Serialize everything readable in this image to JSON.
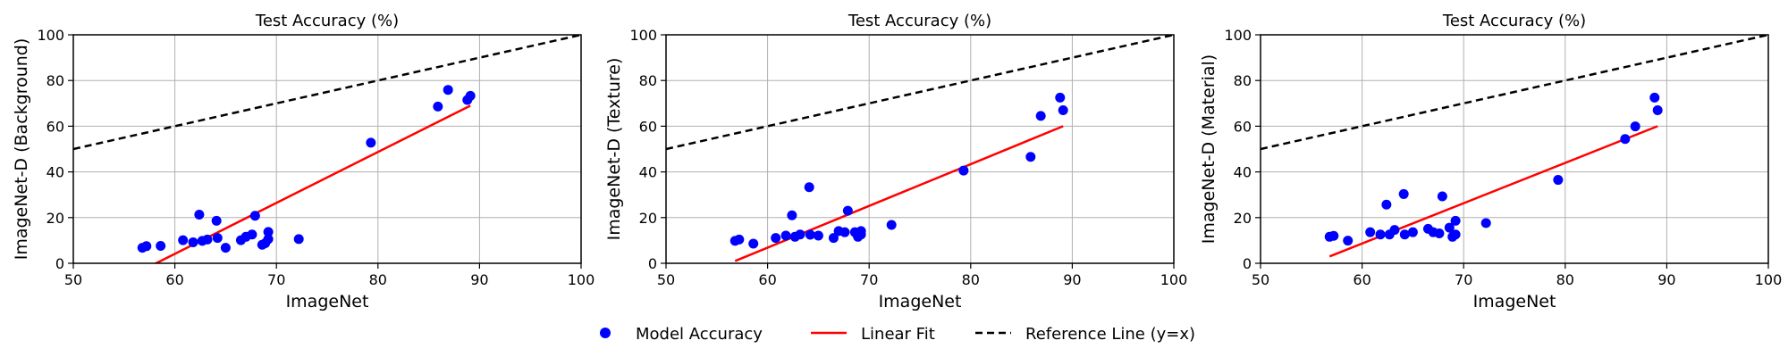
{
  "legend": {
    "model": "Model Accuracy",
    "fit": "Linear Fit",
    "ref": "Reference Line (y=x)"
  },
  "colors": {
    "points": "#0000ff",
    "fit": "#ff0000",
    "ref": "#000000",
    "grid": "#b0b0b0"
  },
  "chart_data": [
    {
      "type": "scatter",
      "title": "Test Accuracy (%)",
      "xlabel": "ImageNet",
      "ylabel": "ImageNet-D (Background)",
      "xlim": [
        50,
        100
      ],
      "ylim": [
        0,
        100
      ],
      "xticks": [
        50,
        60,
        70,
        80,
        90,
        100
      ],
      "yticks": [
        0,
        20,
        40,
        60,
        80,
        100
      ],
      "grid": true,
      "series": [
        {
          "name": "Model Accuracy",
          "type": "scatter",
          "points": [
            [
              56.8,
              6.8
            ],
            [
              57.2,
              7.5
            ],
            [
              58.6,
              7.6
            ],
            [
              60.8,
              10.1
            ],
            [
              61.8,
              9.2
            ],
            [
              62.4,
              21.3
            ],
            [
              62.7,
              9.8
            ],
            [
              63.2,
              10.4
            ],
            [
              64.1,
              18.6
            ],
            [
              64.2,
              11.1
            ],
            [
              65.0,
              6.8
            ],
            [
              66.5,
              10.1
            ],
            [
              67.0,
              11.6
            ],
            [
              67.6,
              12.6
            ],
            [
              67.9,
              20.8
            ],
            [
              68.6,
              8.1
            ],
            [
              68.9,
              8.8
            ],
            [
              69.2,
              10.6
            ],
            [
              69.2,
              13.7
            ],
            [
              72.2,
              10.6
            ],
            [
              79.3,
              52.8
            ],
            [
              85.9,
              68.6
            ],
            [
              86.9,
              75.9
            ],
            [
              88.8,
              71.5
            ],
            [
              89.1,
              73.3
            ]
          ]
        },
        {
          "name": "Linear Fit",
          "type": "line",
          "points": [
            [
              56.8,
              -3
            ],
            [
              89.1,
              69
            ]
          ]
        },
        {
          "name": "Reference Line (y=x)",
          "type": "line",
          "points": [
            [
              50,
              50
            ],
            [
              100,
              100
            ]
          ]
        }
      ]
    },
    {
      "type": "scatter",
      "title": "Test Accuracy (%)",
      "xlabel": "ImageNet",
      "ylabel": "ImageNet-D (Texture)",
      "xlim": [
        50,
        100
      ],
      "ylim": [
        0,
        100
      ],
      "xticks": [
        50,
        60,
        70,
        80,
        90,
        100
      ],
      "yticks": [
        0,
        20,
        40,
        60,
        80,
        100
      ],
      "grid": true,
      "series": [
        {
          "name": "Model Accuracy",
          "type": "scatter",
          "points": [
            [
              56.8,
              9.8
            ],
            [
              57.2,
              10.4
            ],
            [
              58.6,
              8.6
            ],
            [
              60.8,
              11.1
            ],
            [
              61.8,
              12.1
            ],
            [
              62.4,
              21.0
            ],
            [
              62.7,
              11.6
            ],
            [
              63.2,
              12.6
            ],
            [
              64.1,
              33.3
            ],
            [
              64.2,
              12.5
            ],
            [
              65.0,
              12.1
            ],
            [
              66.5,
              11.1
            ],
            [
              67.0,
              14.1
            ],
            [
              67.6,
              13.6
            ],
            [
              67.9,
              23.0
            ],
            [
              68.6,
              13.6
            ],
            [
              68.9,
              11.6
            ],
            [
              69.2,
              12.6
            ],
            [
              69.2,
              14.1
            ],
            [
              72.2,
              16.8
            ],
            [
              79.3,
              40.6
            ],
            [
              85.9,
              46.6
            ],
            [
              86.9,
              64.5
            ],
            [
              88.8,
              72.5
            ],
            [
              89.1,
              67.0
            ]
          ]
        },
        {
          "name": "Linear Fit",
          "type": "line",
          "points": [
            [
              56.8,
              1
            ],
            [
              89.1,
              60
            ]
          ]
        },
        {
          "name": "Reference Line (y=x)",
          "type": "line",
          "points": [
            [
              50,
              50
            ],
            [
              100,
              100
            ]
          ]
        }
      ]
    },
    {
      "type": "scatter",
      "title": "Test Accuracy (%)",
      "xlabel": "ImageNet",
      "ylabel": "ImageNet-D (Material)",
      "xlim": [
        50,
        100
      ],
      "ylim": [
        0,
        100
      ],
      "xticks": [
        50,
        60,
        70,
        80,
        90,
        100
      ],
      "yticks": [
        0,
        20,
        40,
        60,
        80,
        100
      ],
      "grid": true,
      "series": [
        {
          "name": "Model Accuracy",
          "type": "scatter",
          "points": [
            [
              56.8,
              11.6
            ],
            [
              57.2,
              12.0
            ],
            [
              58.6,
              9.9
            ],
            [
              60.8,
              13.6
            ],
            [
              61.8,
              12.6
            ],
            [
              62.4,
              25.7
            ],
            [
              62.7,
              12.6
            ],
            [
              63.2,
              14.6
            ],
            [
              64.1,
              30.3
            ],
            [
              64.2,
              12.6
            ],
            [
              65.0,
              13.6
            ],
            [
              66.5,
              15.1
            ],
            [
              67.0,
              13.6
            ],
            [
              67.6,
              13.1
            ],
            [
              67.9,
              29.3
            ],
            [
              68.6,
              15.6
            ],
            [
              68.9,
              11.6
            ],
            [
              69.2,
              18.6
            ],
            [
              69.2,
              12.6
            ],
            [
              72.2,
              17.6
            ],
            [
              79.3,
              36.5
            ],
            [
              85.9,
              54.4
            ],
            [
              86.9,
              59.9
            ],
            [
              88.8,
              72.5
            ],
            [
              89.1,
              67.0
            ]
          ]
        },
        {
          "name": "Linear Fit",
          "type": "line",
          "points": [
            [
              56.8,
              3
            ],
            [
              89.1,
              60
            ]
          ]
        },
        {
          "name": "Reference Line (y=x)",
          "type": "line",
          "points": [
            [
              50,
              50
            ],
            [
              100,
              100
            ]
          ]
        }
      ]
    }
  ]
}
